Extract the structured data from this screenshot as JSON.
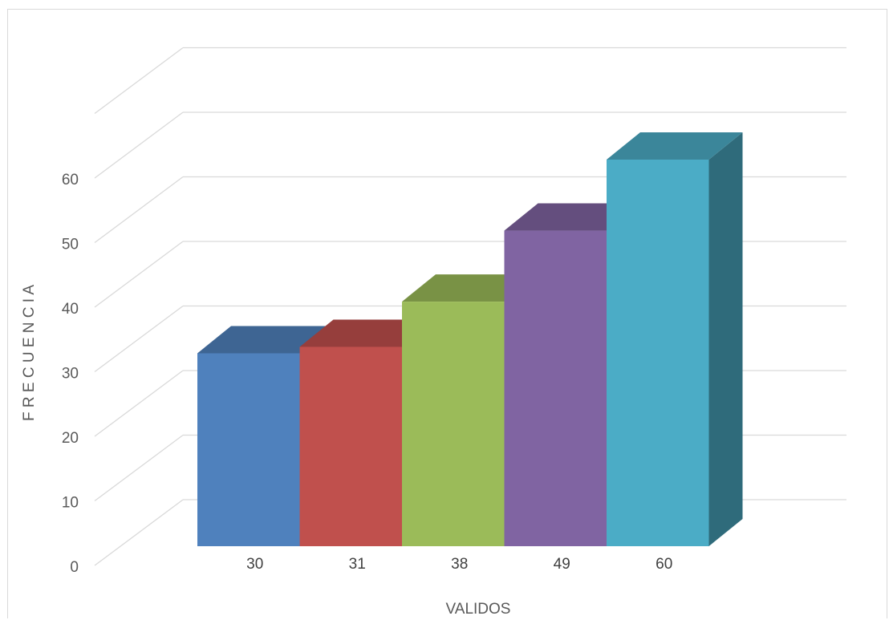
{
  "chart_data": {
    "type": "bar",
    "style": "3d-column",
    "categories": [
      "30",
      "31",
      "38",
      "49",
      "60"
    ],
    "values": [
      30,
      31,
      38,
      49,
      60
    ],
    "colors": [
      "#4f81bd",
      "#c0504d",
      "#9bbb59",
      "#8064a2",
      "#4bacc6"
    ],
    "yticks": [
      0,
      10,
      20,
      30,
      40,
      50,
      60
    ],
    "ylim": [
      0,
      70
    ],
    "xlabel": "VALIDOS",
    "ylabel": "F R E C U E N C I A",
    "grid": true,
    "legend": "none"
  }
}
